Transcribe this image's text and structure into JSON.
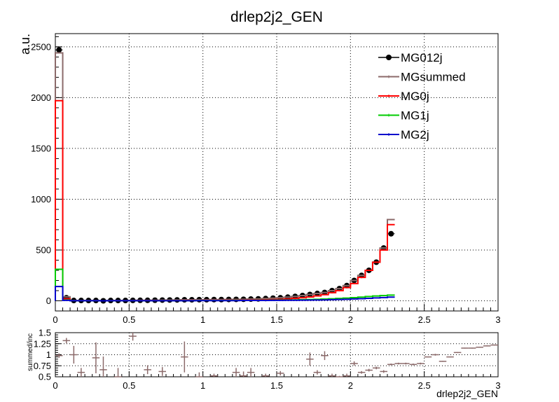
{
  "chart_data": [
    {
      "type": "step",
      "title": "drlep2j2_GEN",
      "xlabel": "",
      "ylabel": "a.u.",
      "xlim": [
        0,
        3
      ],
      "ylim": [
        -100,
        2630
      ],
      "grid": true,
      "legend_position": "top-right",
      "x_ticks": [
        0,
        0.5,
        1,
        1.5,
        2,
        2.5,
        3
      ],
      "x_tick_labels": [
        "0",
        "0.5",
        "1",
        "1.5",
        "2",
        "2.5",
        "3"
      ],
      "y_ticks": [
        0,
        500,
        1000,
        1500,
        2000,
        2500
      ],
      "y_tick_labels": [
        "0",
        "500",
        "1000",
        "1500",
        "2000",
        "2500"
      ],
      "bin_width": 0.05,
      "series": [
        {
          "name": "MG012j",
          "color": "#000000",
          "style": "markers",
          "values": [
            2470,
            30,
            3,
            3,
            3,
            3,
            0,
            3,
            3,
            3,
            4,
            5,
            5,
            6,
            7,
            8,
            9,
            10,
            10,
            11,
            11,
            12,
            12,
            13,
            14,
            15,
            17,
            19,
            22,
            26,
            30,
            36,
            43,
            52,
            62,
            72,
            82,
            100,
            120,
            150,
            200,
            250,
            300,
            380,
            520,
            660
          ]
        },
        {
          "name": "MGsummed",
          "color": "#8b6a6a",
          "style": "step",
          "values": [
            2440,
            40,
            3,
            3,
            3,
            3,
            0,
            3,
            3,
            3,
            4,
            5,
            5,
            6,
            7,
            8,
            9,
            10,
            10,
            11,
            11,
            12,
            12,
            13,
            14,
            15,
            17,
            19,
            22,
            26,
            30,
            36,
            43,
            52,
            62,
            72,
            82,
            100,
            120,
            150,
            200,
            250,
            300,
            380,
            520,
            800
          ]
        },
        {
          "name": "MG0j",
          "color": "#ff0000",
          "style": "step",
          "values": [
            1970,
            20,
            1,
            1,
            1,
            1,
            0,
            1,
            1,
            1,
            1,
            2,
            2,
            2,
            3,
            3,
            3,
            4,
            4,
            4,
            5,
            5,
            5,
            6,
            6,
            7,
            8,
            9,
            10,
            12,
            14,
            18,
            24,
            30,
            38,
            48,
            60,
            80,
            100,
            130,
            170,
            230,
            300,
            380,
            500,
            750
          ]
        },
        {
          "name": "MG1j",
          "color": "#00cc00",
          "style": "step",
          "values": [
            310,
            8,
            1,
            1,
            1,
            1,
            0,
            1,
            1,
            1,
            1,
            1,
            1,
            1,
            2,
            2,
            2,
            2,
            2,
            3,
            3,
            3,
            3,
            3,
            4,
            4,
            4,
            5,
            5,
            6,
            7,
            8,
            9,
            11,
            13,
            15,
            17,
            20,
            23,
            27,
            31,
            36,
            42,
            47,
            52,
            56
          ]
        },
        {
          "name": "MG2j",
          "color": "#0000cc",
          "style": "step",
          "values": [
            140,
            4,
            1,
            1,
            1,
            1,
            0,
            1,
            1,
            1,
            1,
            1,
            1,
            1,
            1,
            1,
            1,
            1,
            1,
            2,
            2,
            2,
            2,
            2,
            2,
            3,
            3,
            3,
            3,
            4,
            4,
            5,
            5,
            6,
            7,
            8,
            9,
            11,
            13,
            15,
            18,
            21,
            24,
            28,
            32,
            36
          ]
        }
      ]
    },
    {
      "type": "scatter",
      "title": "",
      "xlabel": "drlep2j2_GEN",
      "ylabel": "summed/inc",
      "xlim": [
        0,
        3
      ],
      "ylim": [
        0.5,
        1.5
      ],
      "grid": true,
      "x_ticks": [
        0,
        0.5,
        1,
        1.5,
        2,
        2.5,
        3
      ],
      "x_tick_labels": [
        "0",
        "0.5",
        "1",
        "1.5",
        "2",
        "2.5",
        "3"
      ],
      "y_ticks": [
        0.5,
        0.75,
        1,
        1.25,
        1.5
      ],
      "y_tick_labels": [
        "0.5",
        "0.75",
        "1",
        "1.25",
        "1.5"
      ],
      "series": [
        {
          "name": "",
          "color": "#8b6a6a",
          "x": [
            0.025,
            0.075,
            0.125,
            0.175,
            0.275,
            0.325,
            0.425,
            0.525,
            0.625,
            0.725,
            0.875,
            0.975,
            1.075,
            1.225,
            1.275,
            1.325,
            1.425,
            1.525,
            1.725,
            1.775,
            1.825,
            1.875,
            1.925,
            1.975,
            2.025,
            2.075,
            2.125,
            2.175,
            2.225,
            2.275,
            2.325,
            2.375,
            2.425,
            2.475,
            2.525,
            2.575,
            2.625,
            2.675,
            2.725,
            2.775,
            2.825,
            2.875,
            2.925,
            2.975
          ],
          "y": [
            0.98,
            1.32,
            1.0,
            0.6,
            0.93,
            0.66,
            0.5,
            1.42,
            0.66,
            0.62,
            0.95,
            0.5,
            0.52,
            0.6,
            0.52,
            0.6,
            0.52,
            0.58,
            0.9,
            0.6,
            0.98,
            0.52,
            0.5,
            0.52,
            0.8,
            0.6,
            0.65,
            0.7,
            0.62,
            0.78,
            0.8,
            0.8,
            0.78,
            0.8,
            0.95,
            1.0,
            0.85,
            0.95,
            1.05,
            1.15,
            1.15,
            1.17,
            1.2,
            1.22
          ],
          "err": [
            0.05,
            0.06,
            0.2,
            0.1,
            0.35,
            0.3,
            0.2,
            0.1,
            0.1,
            0.1,
            0.35,
            0.1,
            0.05,
            0.1,
            0.1,
            0.1,
            0.05,
            0.05,
            0.15,
            0.05,
            0.1,
            0.05,
            0.02,
            0.05,
            0.05,
            0.03,
            0.03,
            0.03,
            0.03,
            0.02,
            0.02,
            0.02,
            0.02,
            0.02,
            0.01,
            0.02,
            0.01,
            0.01,
            0.01,
            0.01,
            0.01,
            0.01,
            0.01,
            0.01
          ]
        }
      ]
    }
  ]
}
